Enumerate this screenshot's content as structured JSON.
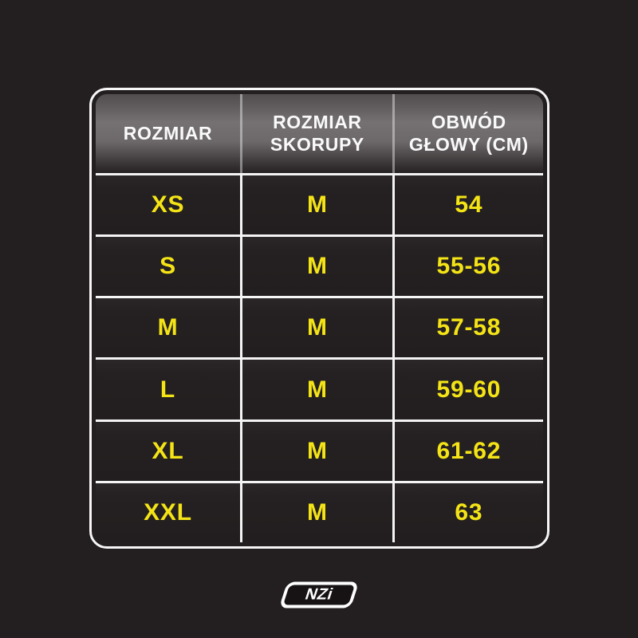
{
  "page": {
    "background_color": "#231f20",
    "accent_yellow": "#f4e416",
    "header_text_color": "#fafafa",
    "separator_color": "#f5f4f4"
  },
  "chart_data": {
    "type": "table",
    "title": "",
    "columns": [
      "ROZMIAR",
      "ROZMIAR SKORUPY",
      "OBWÓD GŁOWY (CM)"
    ],
    "rows": [
      [
        "XS",
        "M",
        "54"
      ],
      [
        "S",
        "M",
        "55-56"
      ],
      [
        "M",
        "M",
        "57-58"
      ],
      [
        "L",
        "M",
        "59-60"
      ],
      [
        "XL",
        "M",
        "61-62"
      ],
      [
        "XXL",
        "M",
        "63"
      ]
    ]
  },
  "table": {
    "header": [
      {
        "line1": "ROZMIAR"
      },
      {
        "line1": "ROZMIAR",
        "line2": "SKORUPY"
      },
      {
        "line1": "OBWÓD",
        "line2": "GŁOWY (CM)"
      }
    ],
    "rows": [
      {
        "size": "XS",
        "shell": "M",
        "head": "54"
      },
      {
        "size": "S",
        "shell": "M",
        "head": "55-56"
      },
      {
        "size": "M",
        "shell": "M",
        "head": "57-58"
      },
      {
        "size": "L",
        "shell": "M",
        "head": "59-60"
      },
      {
        "size": "XL",
        "shell": "M",
        "head": "61-62"
      },
      {
        "size": "XXL",
        "shell": "M",
        "head": "63"
      }
    ]
  },
  "logo": {
    "text": "NZi"
  }
}
